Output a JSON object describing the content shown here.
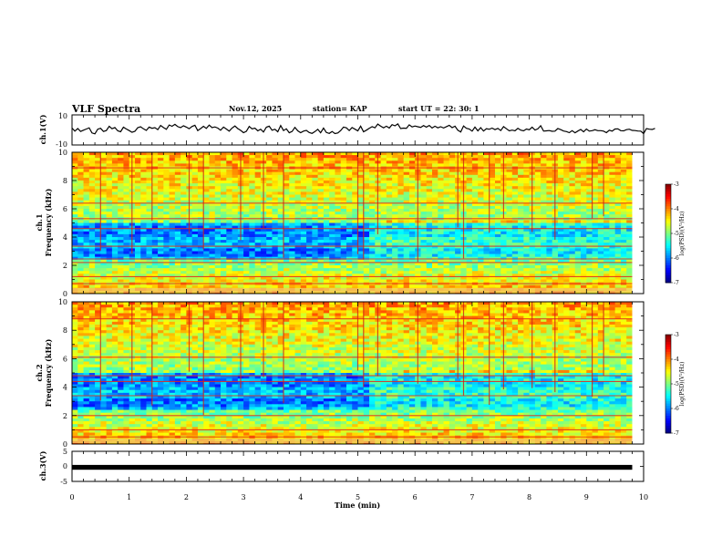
{
  "header": {
    "title": "VLF Spectra",
    "date": "Nov.12, 2025",
    "station": "station= KAP",
    "start": "start  UT  =   22: 30: 1"
  },
  "chart_data": [
    {
      "name": "ch.1 waveform",
      "type": "line",
      "ylabel": "ch.1(V)",
      "ylim": [
        -10,
        10
      ],
      "yticks": [
        "10",
        "-10"
      ],
      "xlim": [
        0,
        10
      ],
      "x_end": 9.8,
      "x_step": 0.05,
      "values": [
        1.2,
        -0.8,
        0.9,
        -1.0,
        -0.2,
        0.6,
        1.4,
        -2.0,
        -2.6,
        0.5,
        1.1,
        -1.0,
        -0.4,
        2.4,
        0.8,
        1.6,
        -0.6,
        -1.2,
        1.8,
        0.6,
        -0.4,
        -1.6,
        -0.9,
        1.5,
        2.1,
        0.7,
        -0.3,
        1.9,
        1.1,
        1.5,
        0.2,
        3.0,
        1.6,
        0.4,
        3.3,
        2.4,
        3.7,
        2.2,
        1.5,
        2.8,
        1.9,
        0.8,
        2.3,
        3.1,
        -0.4,
        0.9,
        2.4,
        1.0,
        3.2,
        1.5,
        2.0,
        1.2,
        -0.2,
        1.9,
        0.6,
        -0.8,
        1.3,
        2.6,
        0.9,
        -0.3,
        -1.8,
        -0.9,
        2.3,
        0.7,
        1.2,
        -0.6,
        0.5,
        -1.4,
        1.8,
        2.5,
        -0.2,
        0.4,
        -1.2,
        2.9,
        -0.4,
        0.7,
        -1.9,
        -1.0,
        1.7,
        -0.6,
        -1.8,
        -0.8,
        -0.3,
        -1.7,
        -2.3,
        -1.1,
        0.4,
        -1.9,
        1.2,
        -1.7,
        -2.3,
        -1.0,
        -2.4,
        -2.0,
        -0.4,
        1.9,
        1.4,
        -0.4,
        1.6,
        0.5,
        -0.6,
        2.5,
        -1.2,
        -0.2,
        1.1,
        2.2,
        1.4,
        3.9,
        2.5,
        1.4,
        2.5,
        1.3,
        3.5,
        2.7,
        4.0,
        0.9,
        1.2,
        1.1,
        3.4,
        2.0,
        2.6,
        2.1,
        1.7,
        2.9,
        1.9,
        3.0,
        1.3,
        2.5,
        1.4,
        2.1,
        1.3,
        2.2,
        3.1,
        1.5,
        2.5,
        -0.2,
        -1.4,
        2.6,
        1.1,
        0.6,
        -0.8,
        1.9,
        -0.6,
        1.5,
        -0.7,
        0.8,
        0.4,
        1.2,
        0.2,
        1.0,
        -0.4,
        2.2,
        0.8,
        -0.6,
        -0.1,
        -0.6,
        1.0,
        -0.1,
        -0.6,
        0.6,
        0.1,
        1.8,
        -0.1,
        0.7,
        2.8,
        -0.8,
        -0.6,
        -0.4,
        -0.9,
        -0.8,
        0.9,
        0.2,
        -0.7,
        -1.1,
        -1.8,
        -0.5,
        -1.9,
        -0.7,
        0.3,
        -1.3,
        0.6,
        -0.8,
        -0.5,
        0.1,
        -0.5,
        -0.5,
        -0.8,
        -1.8,
        -0.2,
        -0.8,
        0.6,
        0.7,
        -0.5,
        -0.6,
        0.2,
        0.5,
        -0.3,
        -0.4,
        -0.7,
        -0.8,
        -2.5,
        0.9,
        0.5,
        0.3,
        1.0
      ]
    },
    {
      "name": "ch.1 spectrogram",
      "type": "heatmap",
      "ylabel_1": "ch.1",
      "ylabel_2": "Frequency  (kHz)",
      "ylim": [
        0,
        10
      ],
      "yticks": [
        0,
        2,
        4,
        6,
        8,
        10
      ],
      "xlim": [
        0,
        10
      ],
      "x_end": 9.8,
      "colorbar": {
        "label": "log(PSD)(V²/Hz)",
        "range": [
          -7,
          -3
        ],
        "ticks": [
          -3,
          -4,
          -5,
          -6,
          -7
        ]
      },
      "strong_lines_khz": [
        0.7,
        1.2,
        2.2,
        2.45,
        3.35,
        4.6,
        5.3,
        6.4,
        8.9
      ],
      "impulses_min": [
        0.5,
        1.05,
        1.4,
        2.05,
        2.3,
        2.95,
        3.35,
        3.7,
        5.0,
        5.1,
        5.35,
        6.05,
        6.75,
        6.85,
        7.3,
        7.55,
        8.05,
        8.45,
        9.1,
        9.3
      ]
    },
    {
      "name": "ch.2 spectrogram",
      "type": "heatmap",
      "ylabel_1": "ch.2",
      "ylabel_2": "Frequency  (kHz)",
      "ylim": [
        0,
        10
      ],
      "yticks": [
        0,
        2,
        4,
        6,
        8,
        10
      ],
      "xlim": [
        0,
        10
      ],
      "x_end": 9.8,
      "colorbar": {
        "label": "log(PSD)(V²/Hz)",
        "range": [
          -7,
          -3
        ],
        "ticks": [
          -3,
          -4,
          -5,
          -6,
          -7
        ]
      },
      "strong_lines_khz": [
        0.5,
        1.0,
        2.0,
        3.4,
        4.4,
        4.8,
        6.1,
        8.8
      ],
      "impulses_min": [
        0.5,
        1.05,
        1.4,
        2.05,
        2.3,
        2.95,
        3.35,
        3.7,
        5.0,
        5.1,
        5.35,
        6.05,
        6.75,
        6.85,
        7.3,
        7.55,
        8.05,
        8.45,
        9.1,
        9.3
      ]
    },
    {
      "name": "ch.3 waveform",
      "type": "line",
      "ylabel": "ch.3(V)",
      "ylim": [
        -5,
        5
      ],
      "yticks": [
        "5",
        "0",
        "-5"
      ],
      "xlim": [
        0,
        10
      ],
      "x_end": 9.8,
      "band": [
        -0.5,
        0.5
      ],
      "xlabel": "Time  (min)",
      "xticks": [
        0,
        1,
        2,
        3,
        4,
        5,
        6,
        7,
        8,
        9,
        10
      ]
    }
  ]
}
